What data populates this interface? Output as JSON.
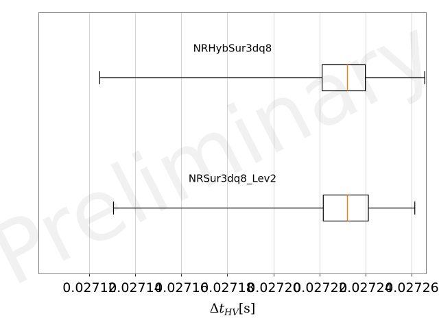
{
  "chart_data": {
    "type": "boxplot",
    "orientation": "horizontal",
    "xlabel": "Δt_HV[s]",
    "xlim": [
      0.027098,
      0.0272665
    ],
    "xticks": [
      0.02712,
      0.02714,
      0.02716,
      0.02718,
      0.0272,
      0.02722,
      0.02724,
      0.02726
    ],
    "xtick_labels": [
      "0.02712",
      "0.02714",
      "0.02716",
      "0.02718",
      "0.02720",
      "0.02722",
      "0.02724",
      "0.02726"
    ],
    "grid": "x",
    "watermark": "Preliminary",
    "series": [
      {
        "name": "NRHybSur3dq8",
        "whisker_low": 0.0271245,
        "q1": 0.0272212,
        "median": 0.0272322,
        "q3": 0.02724,
        "whisker_high": 0.0272658
      },
      {
        "name": "NRSur3dq8_Lev2",
        "whisker_low": 0.0271305,
        "q1": 0.0272217,
        "median": 0.0272322,
        "q3": 0.0272413,
        "whisker_high": 0.0272615
      }
    ],
    "colors": {
      "box": "#000000",
      "median": "#ff7f0e",
      "grid": "#b0b0b0",
      "frame": "#808080"
    }
  }
}
